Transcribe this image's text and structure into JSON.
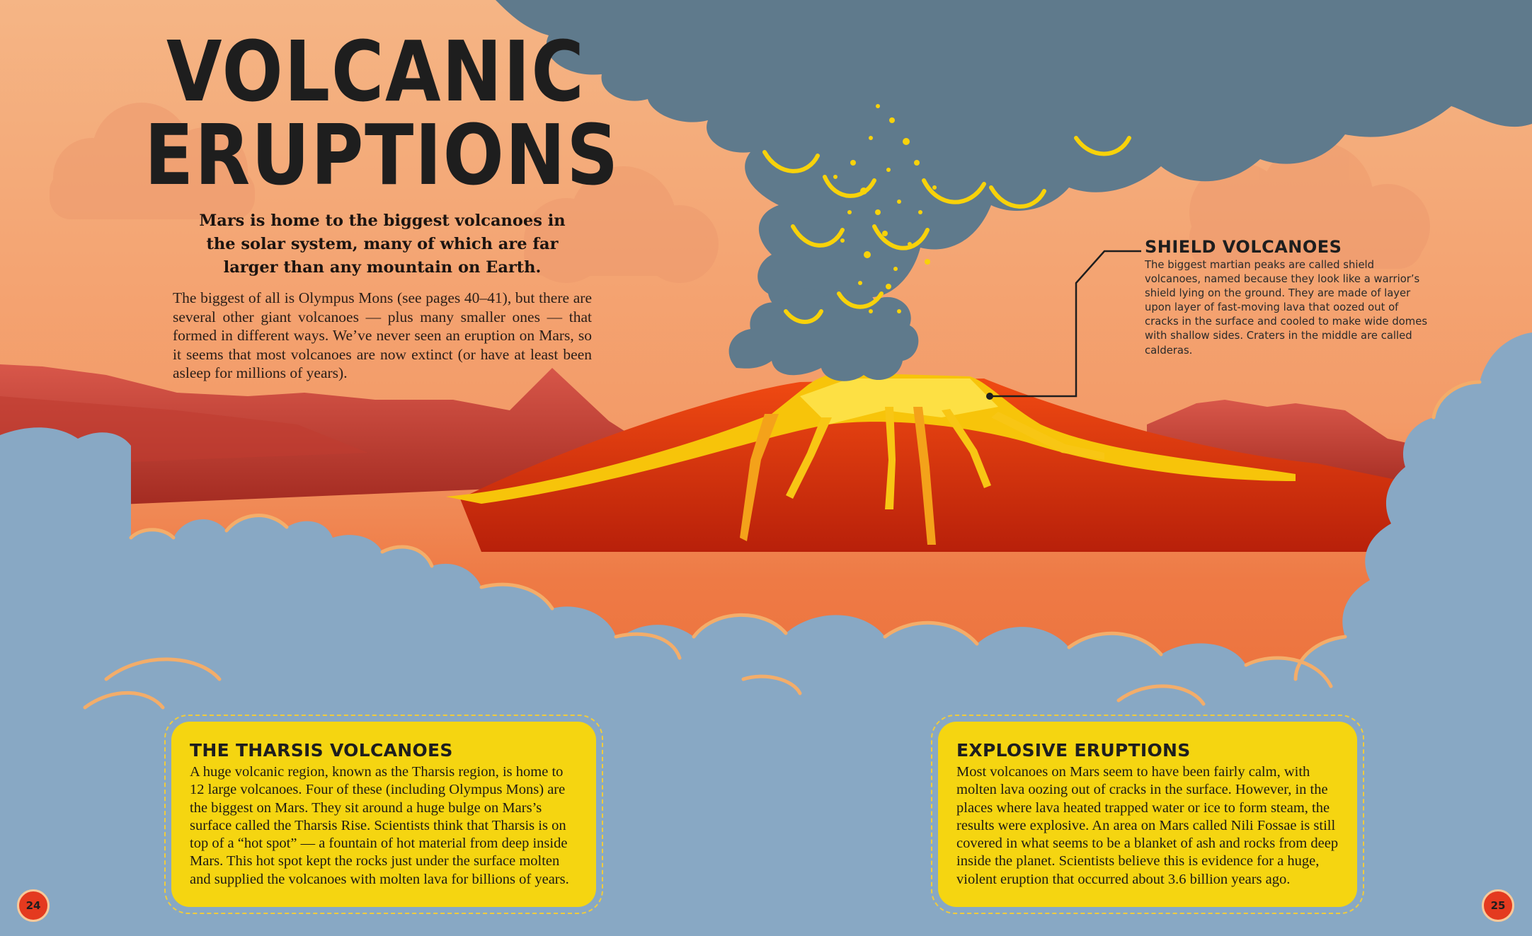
{
  "title": {
    "line1": "VOLCANIC",
    "line2": "ERUPTIONS"
  },
  "intro": "Mars is home to the biggest volcanoes in the solar system, many of which are far larger than any mountain on Earth.",
  "body": "The biggest of all is Olympus Mons (see pages 40–41), but there are several other giant volcanoes — plus many smaller ones — that formed in different ways. We’ve never seen an eruption on Mars, so it seems that most volcanoes are now extinct (or have at least been asleep for millions of years).",
  "shield": {
    "heading": "SHIELD VOLCANOES",
    "text": "The biggest martian peaks are called shield volcanoes, named because they look like a warrior’s shield lying on the ground. They are made of layer upon layer of fast-moving lava that oozed out of cracks in the surface and cooled to make wide domes with shallow sides. Craters in the middle are called calderas."
  },
  "tharsis": {
    "heading": "THE THARSIS VOLCANOES",
    "text": "A huge volcanic region, known as the Tharsis region, is home to 12 large volcanoes. Four of these (including Olympus Mons) are the biggest on Mars. They sit around a huge bulge on Mars’s surface called the Tharsis Rise. Scientists think that Tharsis is on top of a “hot spot” — a fountain of hot material from deep inside Mars. This hot spot kept the rocks just under the surface molten and supplied the volcanoes with molten lava for billions of years."
  },
  "explosive": {
    "heading": "EXPLOSIVE ERUPTIONS",
    "text": "Most volcanoes on Mars seem to have been fairly calm, with molten lava oozing out of cracks in the surface. However, in the places where lava heated trapped water or ice to form steam, the results were explosive. An area on Mars called Nili Fossae is still covered in what seems to be a blanket of ash and rocks from deep inside the planet. Scientists believe this is evidence for a huge, violent eruption that occurred about 3.6 billion years ago."
  },
  "page_numbers": {
    "left": "24",
    "right": "25"
  },
  "colors": {
    "sky_top": "#f2a574",
    "sky_bottom": "#ee7b45",
    "smoke": "#5f7a8c",
    "cloud": "#88a8c4",
    "cloud_rim": "#f3ad6a",
    "lava_red": "#e0360f",
    "lava_yellow": "#f8d20a",
    "box_yellow": "#f5d511",
    "page_circle": "#e43a1f"
  }
}
